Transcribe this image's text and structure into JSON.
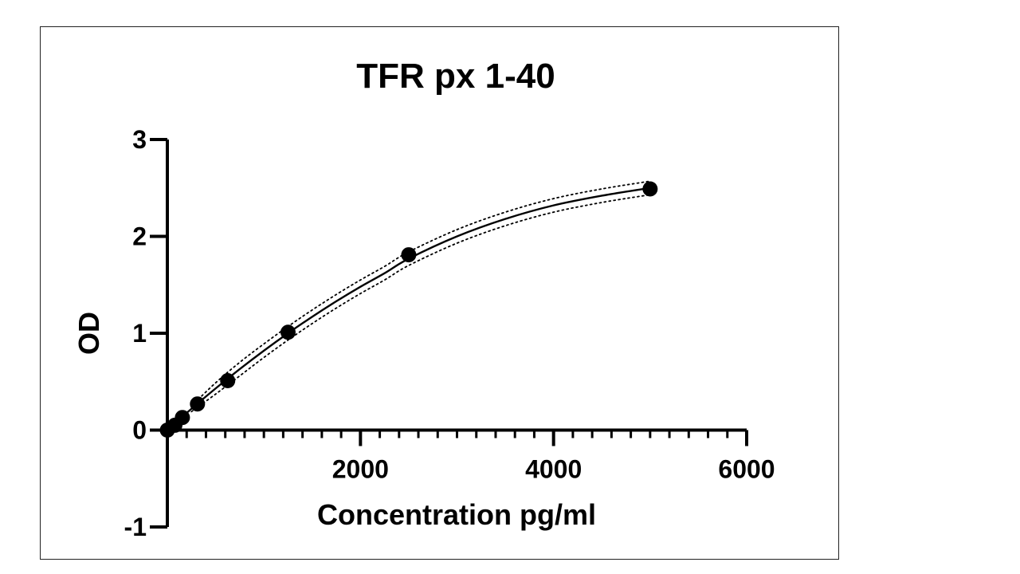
{
  "chart_data": {
    "type": "scatter",
    "title": "TFR px 1-40",
    "xlabel": "Concentration pg/ml",
    "ylabel": "OD",
    "xlim": [
      0,
      6000
    ],
    "ylim": [
      -1,
      3
    ],
    "x_ticks": [
      {
        "value": 2000,
        "label": "2000"
      },
      {
        "value": 4000,
        "label": "4000"
      },
      {
        "value": 6000,
        "label": "6000"
      }
    ],
    "x_minor_step": 200,
    "y_ticks": [
      {
        "value": -1,
        "label": "-1"
      },
      {
        "value": 0,
        "label": "0"
      },
      {
        "value": 1,
        "label": "1"
      },
      {
        "value": 2,
        "label": "2"
      },
      {
        "value": 3,
        "label": "3"
      }
    ],
    "grid": false,
    "legend": "none",
    "points": [
      {
        "x": 0,
        "y": 0.0
      },
      {
        "x": 78,
        "y": 0.05
      },
      {
        "x": 156,
        "y": 0.13
      },
      {
        "x": 312,
        "y": 0.27
      },
      {
        "x": 625,
        "y": 0.51
      },
      {
        "x": 1250,
        "y": 1.01
      },
      {
        "x": 2500,
        "y": 1.81
      },
      {
        "x": 5000,
        "y": 2.49
      }
    ],
    "fit_curve": [
      {
        "x": 0,
        "y": 0.0
      },
      {
        "x": 250,
        "y": 0.22
      },
      {
        "x": 500,
        "y": 0.43
      },
      {
        "x": 750,
        "y": 0.63
      },
      {
        "x": 1000,
        "y": 0.82
      },
      {
        "x": 1250,
        "y": 1.0
      },
      {
        "x": 1500,
        "y": 1.17
      },
      {
        "x": 1750,
        "y": 1.33
      },
      {
        "x": 2000,
        "y": 1.48
      },
      {
        "x": 2250,
        "y": 1.62
      },
      {
        "x": 2500,
        "y": 1.77
      },
      {
        "x": 3000,
        "y": 2.0
      },
      {
        "x": 3500,
        "y": 2.18
      },
      {
        "x": 4000,
        "y": 2.32
      },
      {
        "x": 4500,
        "y": 2.42
      },
      {
        "x": 5000,
        "y": 2.5
      }
    ],
    "confidence_band_halfwidth": 0.07,
    "colors": {
      "points": "#000000",
      "curve": "#000000",
      "band": "#000000",
      "axes": "#000000"
    }
  }
}
